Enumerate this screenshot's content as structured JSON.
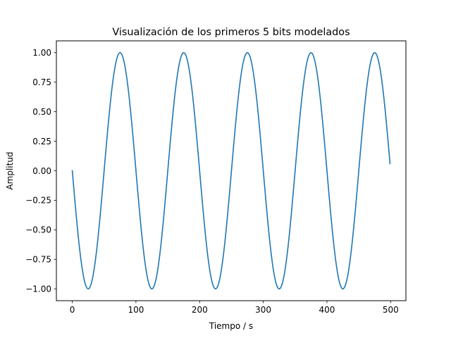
{
  "chart_data": {
    "type": "line",
    "title": "Visualización de los primeros 5 bits modelados",
    "xlabel": "Tiempo / s",
    "ylabel": "Amplitud",
    "xlim": [
      -25,
      524
    ],
    "ylim": [
      -1.1,
      1.1
    ],
    "x_ticks": [
      0,
      100,
      200,
      300,
      400,
      500
    ],
    "x_tick_labels": [
      "0",
      "100",
      "200",
      "300",
      "400",
      "500"
    ],
    "y_ticks": [
      -1.0,
      -0.75,
      -0.5,
      -0.25,
      0.0,
      0.25,
      0.5,
      0.75,
      1.0
    ],
    "y_tick_labels": [
      "−1.00",
      "−0.75",
      "−0.50",
      "−0.25",
      "0.00",
      "0.25",
      "0.50",
      "0.75",
      "1.00"
    ],
    "grid": false,
    "legend": "none",
    "series": [
      {
        "color": "#1f77b4",
        "function": "y = -sin(2*pi*x/100)",
        "x_range": [
          0,
          499
        ],
        "x": [
          0,
          25,
          50,
          75,
          100,
          125,
          150,
          175,
          200,
          225,
          250,
          275,
          300,
          325,
          350,
          375,
          400,
          425,
          450,
          475,
          499
        ],
        "y": [
          0.0,
          -1.0,
          0.0,
          1.0,
          0.0,
          -1.0,
          0.0,
          1.0,
          0.0,
          -1.0,
          0.0,
          1.0,
          0.0,
          -1.0,
          0.0,
          1.0,
          0.0,
          -1.0,
          0.0,
          1.0,
          0.06
        ]
      }
    ]
  }
}
